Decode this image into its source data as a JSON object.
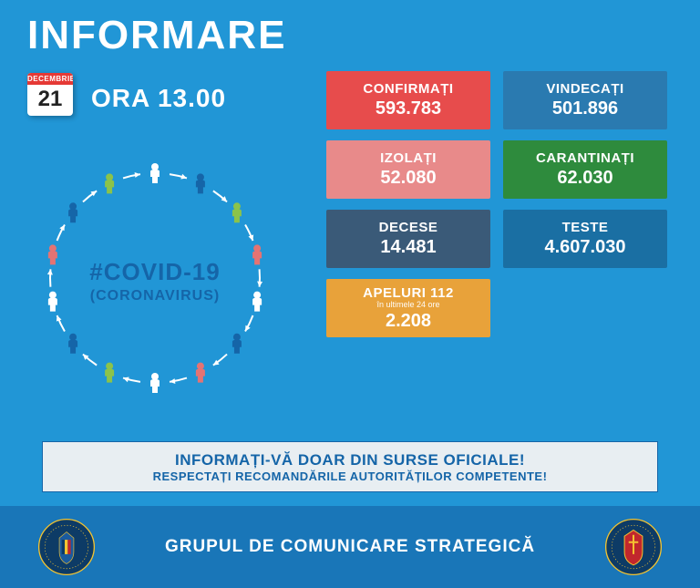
{
  "title": "INFORMARE",
  "calendar": {
    "month": "DECEMBRIE",
    "day": "21"
  },
  "time": "ORA 13.00",
  "covid": {
    "hashtag": "#COVID-19",
    "sub": "(CORONAVIRUS)"
  },
  "colors": {
    "page_bg": "#2196d6",
    "footer_bg": "#1976b8",
    "advice_bg": "#e8eef2",
    "advice_text": "#1565a8",
    "calendar_header": "#e53935"
  },
  "person_colors": [
    "#ffffff",
    "#1565a8",
    "#8bc34a",
    "#e57373",
    "#ffffff",
    "#1565a8",
    "#e57373",
    "#ffffff",
    "#8bc34a",
    "#1565a8",
    "#ffffff",
    "#e57373",
    "#1565a8",
    "#8bc34a"
  ],
  "cards": {
    "confirmati": {
      "label": "CONFIRMAȚI",
      "value": "593.783",
      "bg": "#e74c4c",
      "text": "#ffffff"
    },
    "vindecati": {
      "label": "VINDECAȚI",
      "value": "501.896",
      "bg": "#2a7ab0",
      "text": "#ffffff"
    },
    "izolati": {
      "label": "IZOLAȚI",
      "value": "52.080",
      "bg": "#e88a8a",
      "text": "#ffffff"
    },
    "carantinati": {
      "label": "CARANTINAȚI",
      "value": "62.030",
      "bg": "#2e8b3d",
      "text": "#ffffff"
    },
    "decese": {
      "label": "DECESE",
      "value": "14.481",
      "bg": "#3a5a78",
      "text": "#ffffff"
    },
    "teste": {
      "label": "TESTE",
      "value": "4.607.030",
      "bg": "#1a6fa3",
      "text": "#ffffff"
    },
    "apeluri": {
      "label": "APELURI 112",
      "sub": "în ultimele 24 ore",
      "value": "2.208",
      "bg": "#e8a23a",
      "text": "#ffffff"
    }
  },
  "advice": {
    "line1": "INFORMAȚI-VĂ DOAR DIN SURSE OFICIALE!",
    "line2": "RESPECTAȚI RECOMANDĂRILE AUTORITĂȚILOR COMPETENTE!"
  },
  "footer": {
    "text": "GRUPUL DE COMUNICARE STRATEGICĂ"
  }
}
